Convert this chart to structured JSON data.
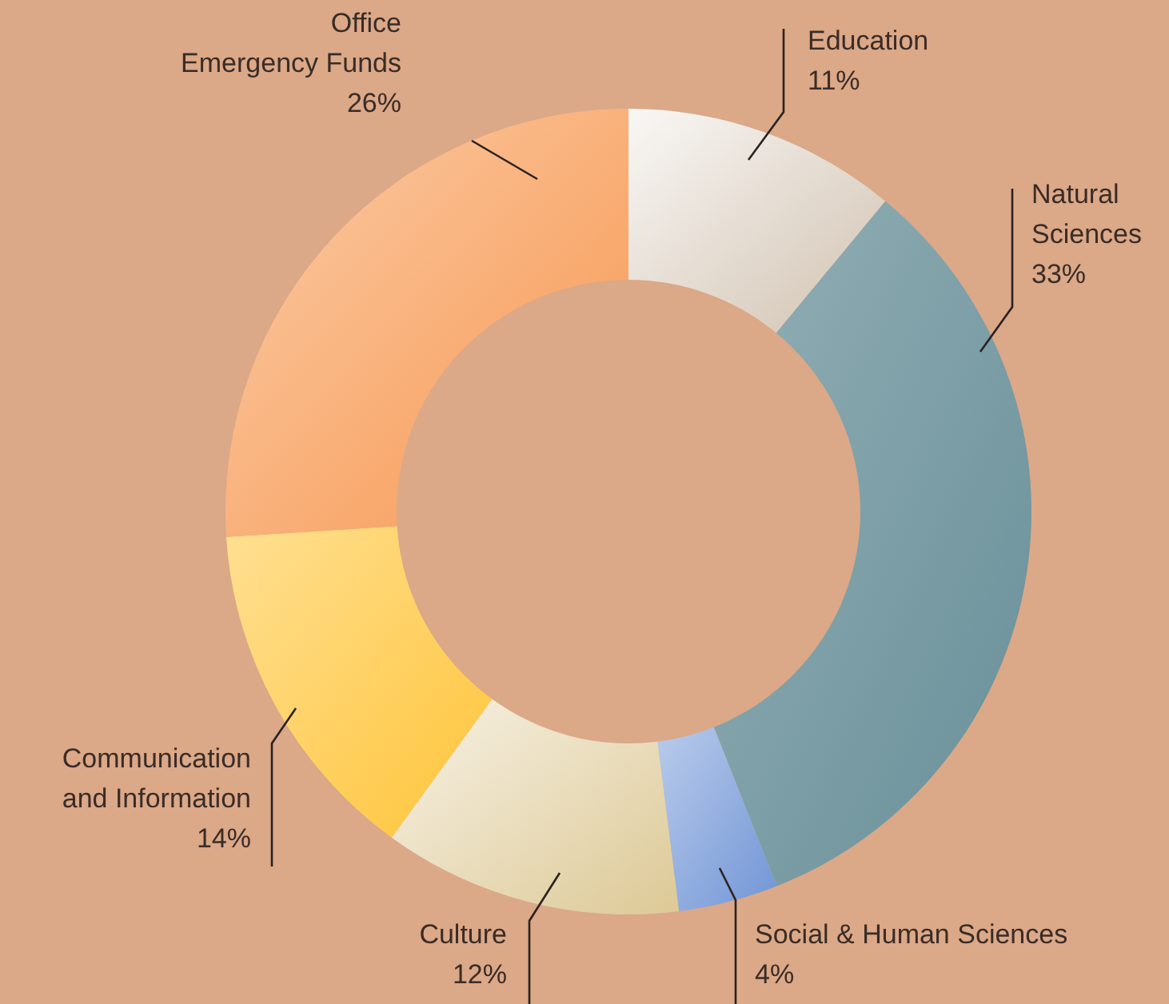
{
  "chart_data": {
    "type": "donut",
    "categories": [
      "Education",
      "Natural\nSciences",
      "Social & Human Sciences",
      "Culture",
      "Communication\nand Information",
      "Office\nEmergency Funds"
    ],
    "values": [
      11,
      33,
      4,
      12,
      14,
      26
    ],
    "value_labels": [
      "11%",
      "33%",
      "4%",
      "12%",
      "14%",
      "26%"
    ],
    "colors": [
      "#e4dbd0",
      "#7c9ea6",
      "#93aee0",
      "#e9dcbb",
      "#ffd163",
      "#f9b079"
    ]
  }
}
